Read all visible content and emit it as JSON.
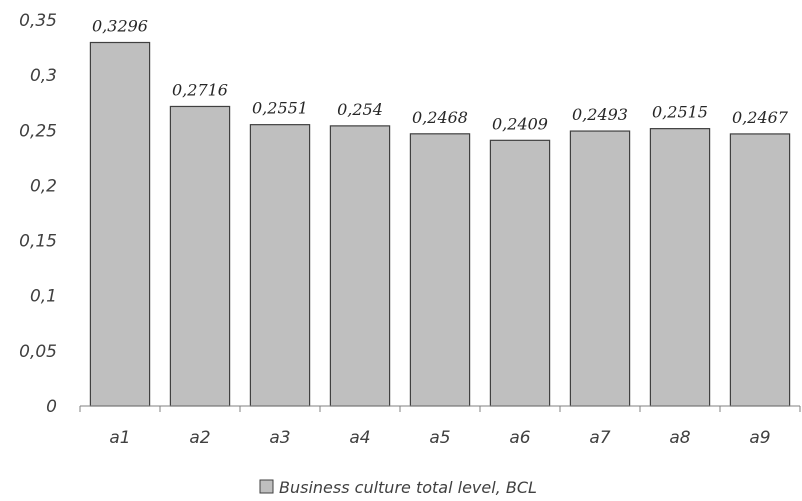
{
  "chart_data": {
    "type": "bar",
    "categories": [
      "a1",
      "a2",
      "a3",
      "a4",
      "a5",
      "a6",
      "a7",
      "a8",
      "a9"
    ],
    "series": [
      {
        "name": "Business culture total level, BCL",
        "values": [
          0.3296,
          0.2716,
          0.2551,
          0.254,
          0.2468,
          0.2409,
          0.2493,
          0.2515,
          0.2467
        ],
        "data_labels": [
          "0,3296",
          "0,2716",
          "0,2551",
          "0,254",
          "0,2468",
          "0,2409",
          "0,2493",
          "0,2515",
          "0,2467"
        ]
      }
    ],
    "y_ticks": [
      0,
      0.05,
      0.1,
      0.15,
      0.2,
      0.25,
      0.3,
      0.35
    ],
    "y_tick_labels": [
      "0",
      "0,05",
      "0,1",
      "0,15",
      "0,2",
      "0,25",
      "0,3",
      "0,35"
    ],
    "ylim": [
      0,
      0.35
    ],
    "grid": false,
    "legend_position": "bottom",
    "colors": {
      "bar_fill": "#bfbfbf",
      "bar_stroke": "#404040",
      "axis": "#808080"
    }
  }
}
